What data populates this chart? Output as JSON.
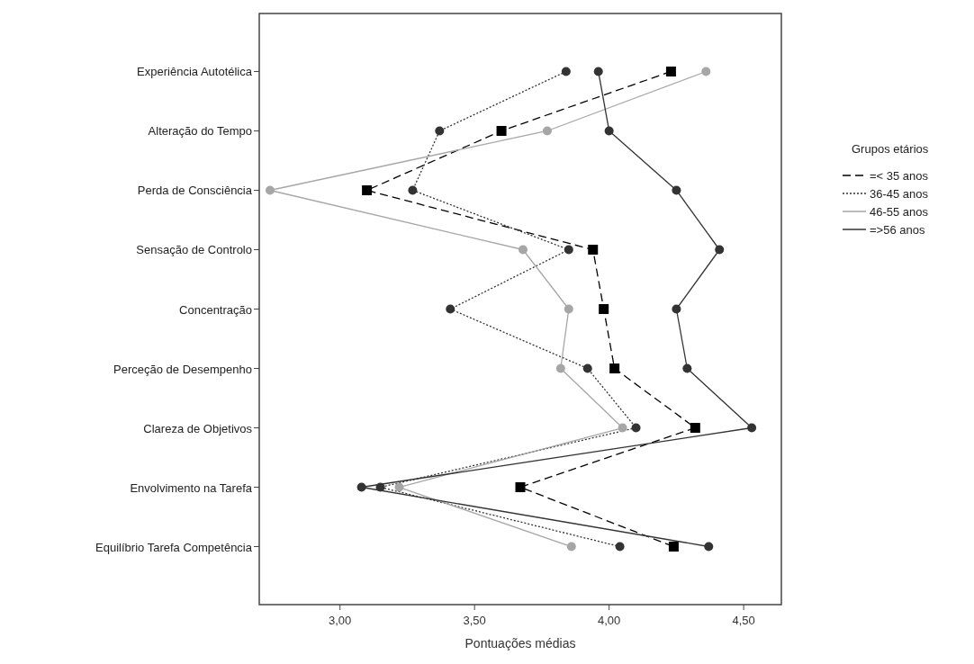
{
  "chart_data": {
    "type": "line",
    "orientation": "horizontal",
    "xlabel": "Pontuações médias",
    "legend_title": "Grupos etários",
    "legend": "right",
    "grid": false,
    "categories": [
      "Experiência Autotélica",
      "Alteração do Tempo",
      "Perda de Consciência",
      "Sensação de Controlo",
      "Concentração",
      "Perceção de Desempenho",
      "Clareza de Objetivos",
      "Envolvimento na Tarefa",
      "Equilíbrio Tarefa Competência"
    ],
    "xlim": [
      2.7,
      4.64
    ],
    "xticks": [
      {
        "value": 3,
        "label": "3,00"
      },
      {
        "value": 3.5,
        "label": "3,50"
      },
      {
        "value": 4,
        "label": "4,00"
      },
      {
        "value": 4.5,
        "label": "4,50"
      }
    ],
    "series": [
      {
        "name": "=< 35 anos",
        "color": "#000000",
        "line_style": "dashed",
        "marker": "square",
        "values": [
          4.23,
          3.6,
          3.1,
          3.94,
          3.98,
          4.02,
          4.32,
          3.67,
          4.24
        ]
      },
      {
        "name": "36-45 anos",
        "color": "#333333",
        "line_style": "dotted",
        "marker": "circle",
        "values": [
          3.84,
          3.37,
          3.27,
          3.85,
          3.41,
          3.92,
          4.1,
          3.15,
          4.04
        ]
      },
      {
        "name": "46-55 anos",
        "color": "#a6a6a6",
        "line_style": "solid",
        "marker": "circle",
        "values": [
          4.36,
          3.77,
          2.74,
          3.68,
          3.85,
          3.82,
          4.05,
          3.22,
          3.86
        ]
      },
      {
        "name": "=>56 anos",
        "color": "#333333",
        "line_style": "solid",
        "marker": "circle",
        "values": [
          3.96,
          4.0,
          4.25,
          4.41,
          4.25,
          4.29,
          4.53,
          3.08,
          4.37
        ]
      }
    ]
  }
}
